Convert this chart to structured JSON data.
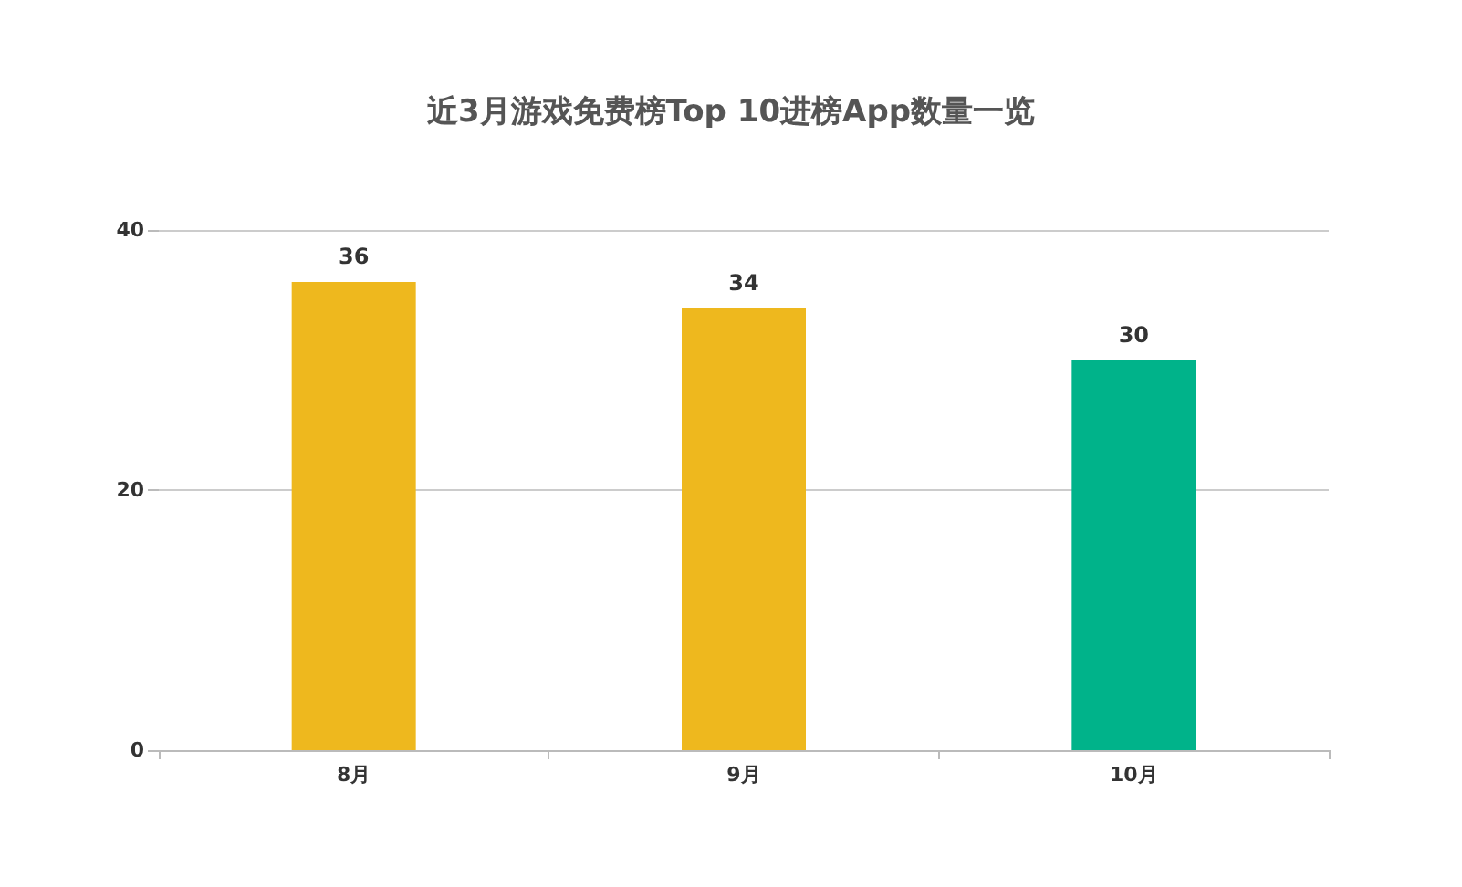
{
  "chart_data": {
    "type": "bar",
    "title": "近3月游戏免费榜Top 10进榜App数量一览",
    "categories": [
      "8月",
      "9月",
      "10月"
    ],
    "values": [
      36,
      34,
      30
    ],
    "colors": [
      "#eeb81e",
      "#eeb81e",
      "#00b38a"
    ],
    "ylim": [
      0,
      40
    ],
    "yticks": [
      0,
      20,
      40
    ],
    "grid": "y",
    "data_labels": true
  }
}
